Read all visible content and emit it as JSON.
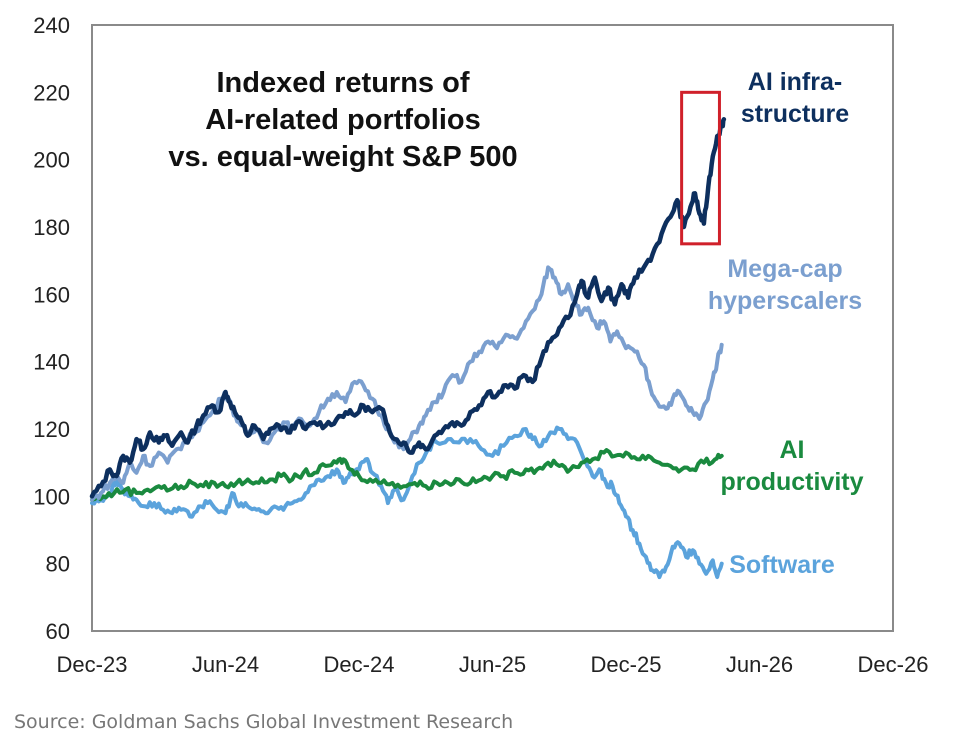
{
  "chart_data": {
    "type": "line",
    "title": "Indexed returns of AI-related portfolios vs. equal-weight S&P 500",
    "title_lines": [
      "Indexed returns of",
      "AI-related portfolios",
      "vs. equal-weight S&P 500"
    ],
    "xlabel": "",
    "ylabel": "",
    "x_unit": "months since Dec-23",
    "xlim": [
      0,
      36
    ],
    "ylim": [
      60,
      240
    ],
    "grid": false,
    "x_ticks": [
      {
        "pos": 0,
        "label": "Dec-23"
      },
      {
        "pos": 6,
        "label": "Jun-24"
      },
      {
        "pos": 12,
        "label": "Dec-24"
      },
      {
        "pos": 18,
        "label": "Jun-25"
      },
      {
        "pos": 24,
        "label": "Dec-25"
      },
      {
        "pos": 30,
        "label": "Jun-26"
      },
      {
        "pos": 36,
        "label": "Dec-26"
      }
    ],
    "y_ticks": [
      60,
      80,
      100,
      120,
      140,
      160,
      180,
      200,
      220,
      240
    ],
    "legend": "direct labels at right end of lines",
    "highlight_box": {
      "x_range": [
        26.5,
        28.2
      ],
      "y_range": [
        175,
        220
      ],
      "color": "#d0202a"
    },
    "series": [
      {
        "name": "AI infra-structure",
        "label_lines": [
          "AI infra-",
          "structure"
        ],
        "color": "#0d2f5e",
        "points": [
          [
            0,
            100
          ],
          [
            0.4,
            103
          ],
          [
            0.8,
            108
          ],
          [
            1.1,
            106
          ],
          [
            1.4,
            112
          ],
          [
            1.7,
            110
          ],
          [
            2,
            117
          ],
          [
            2.3,
            114
          ],
          [
            2.6,
            119
          ],
          [
            3,
            116
          ],
          [
            3.3,
            118
          ],
          [
            3.6,
            115
          ],
          [
            4,
            119
          ],
          [
            4.3,
            116
          ],
          [
            4.7,
            121
          ],
          [
            5,
            124
          ],
          [
            5.4,
            127
          ],
          [
            5.7,
            125
          ],
          [
            6,
            131
          ],
          [
            6.2,
            128
          ],
          [
            6.5,
            124
          ],
          [
            6.8,
            121
          ],
          [
            7,
            118
          ],
          [
            7.3,
            121
          ],
          [
            7.7,
            117
          ],
          [
            8,
            120
          ],
          [
            8.4,
            121
          ],
          [
            8.8,
            119
          ],
          [
            9.2,
            122
          ],
          [
            9.6,
            120
          ],
          [
            10,
            122
          ],
          [
            10.5,
            121
          ],
          [
            11,
            123
          ],
          [
            11.4,
            125
          ],
          [
            11.8,
            124
          ],
          [
            12.2,
            127
          ],
          [
            12.6,
            125
          ],
          [
            13,
            126
          ],
          [
            13.3,
            121
          ],
          [
            13.6,
            117
          ],
          [
            14,
            116
          ],
          [
            14.3,
            113
          ],
          [
            14.7,
            116
          ],
          [
            15,
            114
          ],
          [
            15.4,
            118
          ],
          [
            15.8,
            120
          ],
          [
            16.2,
            122
          ],
          [
            16.6,
            121
          ],
          [
            17,
            125
          ],
          [
            17.4,
            127
          ],
          [
            17.8,
            131
          ],
          [
            18.2,
            130
          ],
          [
            18.6,
            133
          ],
          [
            19,
            132
          ],
          [
            19.4,
            136
          ],
          [
            19.8,
            134
          ],
          [
            20.2,
            141
          ],
          [
            20.6,
            146
          ],
          [
            21,
            150
          ],
          [
            21.4,
            153
          ],
          [
            21.8,
            160
          ],
          [
            22,
            164
          ],
          [
            22.3,
            159
          ],
          [
            22.6,
            165
          ],
          [
            22.9,
            158
          ],
          [
            23.2,
            162
          ],
          [
            23.5,
            157
          ],
          [
            23.8,
            163
          ],
          [
            24.1,
            159
          ],
          [
            24.4,
            165
          ],
          [
            24.8,
            168
          ],
          [
            25.2,
            172
          ],
          [
            25.6,
            178
          ],
          [
            26,
            183
          ],
          [
            26.3,
            188
          ],
          [
            26.6,
            180
          ],
          [
            26.9,
            186
          ],
          [
            27.1,
            190
          ],
          [
            27.3,
            184
          ],
          [
            27.5,
            181
          ],
          [
            27.7,
            192
          ],
          [
            27.9,
            201
          ],
          [
            28.1,
            207
          ],
          [
            28.3,
            210
          ],
          [
            28.4,
            212
          ]
        ]
      },
      {
        "name": "Mega-cap hyperscalers",
        "label_lines": [
          "Mega-cap",
          "hyperscalers"
        ],
        "color": "#7b9fcf",
        "points": [
          [
            0,
            99
          ],
          [
            0.4,
            101
          ],
          [
            0.8,
            104
          ],
          [
            1.1,
            106
          ],
          [
            1.4,
            104
          ],
          [
            1.7,
            110
          ],
          [
            2,
            107
          ],
          [
            2.3,
            112
          ],
          [
            2.6,
            109
          ],
          [
            3,
            113
          ],
          [
            3.4,
            110
          ],
          [
            3.8,
            114
          ],
          [
            4.2,
            116
          ],
          [
            4.6,
            119
          ],
          [
            5,
            122
          ],
          [
            5.4,
            125
          ],
          [
            5.8,
            129
          ],
          [
            6,
            131
          ],
          [
            6.3,
            126
          ],
          [
            6.6,
            122
          ],
          [
            7,
            118
          ],
          [
            7.4,
            120
          ],
          [
            7.8,
            116
          ],
          [
            8.2,
            119
          ],
          [
            8.6,
            122
          ],
          [
            9,
            120
          ],
          [
            9.4,
            123
          ],
          [
            9.8,
            121
          ],
          [
            10.2,
            125
          ],
          [
            10.6,
            129
          ],
          [
            11,
            131
          ],
          [
            11.4,
            128
          ],
          [
            11.8,
            134
          ],
          [
            12.2,
            133
          ],
          [
            12.6,
            129
          ],
          [
            13,
            124
          ],
          [
            13.3,
            120
          ],
          [
            13.6,
            116
          ],
          [
            14,
            114
          ],
          [
            14.3,
            117
          ],
          [
            14.7,
            121
          ],
          [
            15,
            124
          ],
          [
            15.4,
            128
          ],
          [
            15.8,
            131
          ],
          [
            16.2,
            136
          ],
          [
            16.6,
            134
          ],
          [
            17,
            140
          ],
          [
            17.4,
            143
          ],
          [
            17.8,
            146
          ],
          [
            18.2,
            144
          ],
          [
            18.6,
            148
          ],
          [
            19,
            147
          ],
          [
            19.4,
            150
          ],
          [
            19.8,
            155
          ],
          [
            20.2,
            160
          ],
          [
            20.5,
            168
          ],
          [
            20.8,
            165
          ],
          [
            21.1,
            160
          ],
          [
            21.4,
            163
          ],
          [
            21.7,
            158
          ],
          [
            22,
            154
          ],
          [
            22.3,
            156
          ],
          [
            22.7,
            150
          ],
          [
            23,
            152
          ],
          [
            23.3,
            146
          ],
          [
            23.6,
            149
          ],
          [
            24,
            144
          ],
          [
            24.4,
            143
          ],
          [
            24.8,
            139
          ],
          [
            25.1,
            132
          ],
          [
            25.4,
            128
          ],
          [
            25.8,
            126
          ],
          [
            26.1,
            129
          ],
          [
            26.4,
            131
          ],
          [
            26.7,
            127
          ],
          [
            27,
            125
          ],
          [
            27.3,
            123
          ],
          [
            27.6,
            128
          ],
          [
            27.9,
            135
          ],
          [
            28.1,
            140
          ],
          [
            28.3,
            145
          ]
        ]
      },
      {
        "name": "AI productivity",
        "label_lines": [
          "AI",
          "productivity"
        ],
        "color": "#1a8a3f",
        "points": [
          [
            0,
            99
          ],
          [
            0.5,
            100
          ],
          [
            1,
            101
          ],
          [
            1.5,
            102
          ],
          [
            2,
            101
          ],
          [
            2.5,
            102
          ],
          [
            3,
            103
          ],
          [
            3.5,
            102
          ],
          [
            4,
            103
          ],
          [
            4.5,
            104
          ],
          [
            5,
            103
          ],
          [
            5.5,
            104
          ],
          [
            6,
            103
          ],
          [
            6.5,
            104
          ],
          [
            7,
            105
          ],
          [
            7.5,
            104
          ],
          [
            8,
            105
          ],
          [
            8.5,
            106
          ],
          [
            9,
            105
          ],
          [
            9.5,
            107
          ],
          [
            10,
            107
          ],
          [
            10.5,
            109
          ],
          [
            11,
            110
          ],
          [
            11.3,
            111
          ],
          [
            11.6,
            108
          ],
          [
            12,
            106
          ],
          [
            12.5,
            105
          ],
          [
            13,
            104
          ],
          [
            13.5,
            104
          ],
          [
            14,
            103
          ],
          [
            14.5,
            104
          ],
          [
            15,
            103
          ],
          [
            15.5,
            104
          ],
          [
            16,
            104
          ],
          [
            16.5,
            105
          ],
          [
            17,
            104
          ],
          [
            17.5,
            105
          ],
          [
            18,
            106
          ],
          [
            18.5,
            106
          ],
          [
            19,
            107
          ],
          [
            19.5,
            108
          ],
          [
            20,
            108
          ],
          [
            20.5,
            110
          ],
          [
            21,
            109
          ],
          [
            21.5,
            108
          ],
          [
            22,
            110
          ],
          [
            22.5,
            111
          ],
          [
            23,
            113
          ],
          [
            23.5,
            112
          ],
          [
            24,
            113
          ],
          [
            24.5,
            111
          ],
          [
            25,
            112
          ],
          [
            25.5,
            110
          ],
          [
            26,
            109
          ],
          [
            26.5,
            108
          ],
          [
            27,
            108
          ],
          [
            27.5,
            110
          ],
          [
            28,
            111
          ],
          [
            28.3,
            112
          ]
        ]
      },
      {
        "name": "Software",
        "label_lines": [
          "Software"
        ],
        "color": "#5ba3dc",
        "points": [
          [
            0,
            98
          ],
          [
            0.4,
            99
          ],
          [
            0.8,
            101
          ],
          [
            1.1,
            105
          ],
          [
            1.4,
            102
          ],
          [
            1.7,
            100
          ],
          [
            2,
            99
          ],
          [
            2.4,
            97
          ],
          [
            2.8,
            98
          ],
          [
            3.2,
            96
          ],
          [
            3.6,
            95
          ],
          [
            4,
            96
          ],
          [
            4.4,
            94
          ],
          [
            4.8,
            97
          ],
          [
            5.2,
            98
          ],
          [
            5.6,
            96
          ],
          [
            6,
            95
          ],
          [
            6.3,
            101
          ],
          [
            6.6,
            97
          ],
          [
            7,
            97
          ],
          [
            7.4,
            96
          ],
          [
            7.8,
            95
          ],
          [
            8.2,
            97
          ],
          [
            8.6,
            96
          ],
          [
            9,
            98
          ],
          [
            9.4,
            99
          ],
          [
            9.8,
            103
          ],
          [
            10.2,
            105
          ],
          [
            10.6,
            106
          ],
          [
            11,
            108
          ],
          [
            11.3,
            104
          ],
          [
            11.6,
            107
          ],
          [
            12,
            108
          ],
          [
            12.3,
            111
          ],
          [
            12.6,
            107
          ],
          [
            13,
            103
          ],
          [
            13.3,
            98
          ],
          [
            13.6,
            102
          ],
          [
            14,
            99
          ],
          [
            14.3,
            104
          ],
          [
            14.7,
            110
          ],
          [
            15.1,
            114
          ],
          [
            15.5,
            116
          ],
          [
            16,
            117
          ],
          [
            16.5,
            116
          ],
          [
            17,
            117
          ],
          [
            17.5,
            114
          ],
          [
            18,
            112
          ],
          [
            18.5,
            115
          ],
          [
            19,
            118
          ],
          [
            19.5,
            120
          ],
          [
            19.8,
            117
          ],
          [
            20.2,
            115
          ],
          [
            20.6,
            119
          ],
          [
            21,
            120
          ],
          [
            21.4,
            117
          ],
          [
            21.8,
            116
          ],
          [
            22.2,
            110
          ],
          [
            22.5,
            106
          ],
          [
            22.8,
            108
          ],
          [
            23.1,
            104
          ],
          [
            23.4,
            103
          ],
          [
            23.7,
            98
          ],
          [
            24,
            94
          ],
          [
            24.3,
            90
          ],
          [
            24.6,
            86
          ],
          [
            24.9,
            82
          ],
          [
            25.2,
            78
          ],
          [
            25.5,
            76
          ],
          [
            25.8,
            79
          ],
          [
            26.1,
            85
          ],
          [
            26.4,
            86
          ],
          [
            26.7,
            82
          ],
          [
            27,
            84
          ],
          [
            27.3,
            80
          ],
          [
            27.6,
            77
          ],
          [
            27.9,
            81
          ],
          [
            28.1,
            76
          ],
          [
            28.3,
            80
          ]
        ]
      }
    ]
  },
  "source": "Source: Goldman Sachs Global Investment Research"
}
